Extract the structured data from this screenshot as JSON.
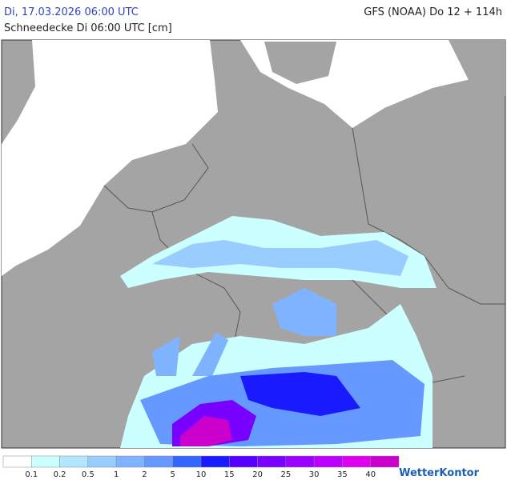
{
  "header": {
    "valid_time": "Di, 17.03.2026 06:00 UTC",
    "model_run": "GFS (NOAA) Do 12 + 114h",
    "subtitle": "Schneedecke Di 06:00 UTC [cm]"
  },
  "legend": {
    "colors": [
      "#ffffff",
      "#ccffff",
      "#b3e6ff",
      "#99ccff",
      "#80b3ff",
      "#6699ff",
      "#3366ff",
      "#1a1aff",
      "#5500ff",
      "#7700ff",
      "#9900ff",
      "#bb00ff",
      "#dd00ee",
      "#cc00cc"
    ],
    "labels": [
      0.1,
      0.2,
      0.5,
      1,
      2,
      5,
      10,
      15,
      20,
      25,
      30,
      35,
      40
    ]
  },
  "logo": "WetterKontor"
}
